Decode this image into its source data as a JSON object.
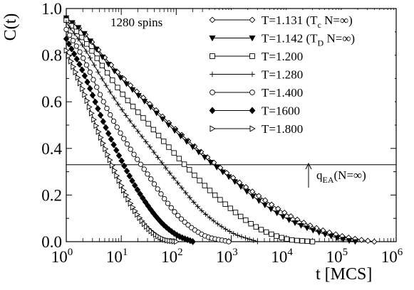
{
  "chart_data": {
    "type": "scatter",
    "title": "",
    "xlabel": "t [MCS]",
    "ylabel": "C(t)",
    "x_scale": "log",
    "xlim": [
      1,
      1000000
    ],
    "ylim": [
      0,
      1.0
    ],
    "grid": false,
    "legend_position": "top-right",
    "annotation": "1280 spins",
    "x_ticks": [
      {
        "value": 1,
        "base": "10",
        "exp": "0"
      },
      {
        "value": 10,
        "base": "10",
        "exp": "1"
      },
      {
        "value": 100,
        "base": "10",
        "exp": "2"
      },
      {
        "value": 1000,
        "base": "10",
        "exp": "3"
      },
      {
        "value": 10000,
        "base": "10",
        "exp": "4"
      },
      {
        "value": 100000,
        "base": "10",
        "exp": "5"
      },
      {
        "value": 1000000,
        "base": "10",
        "exp": "6"
      }
    ],
    "y_ticks": [
      {
        "value": 0.0,
        "label": "0.0"
      },
      {
        "value": 0.2,
        "label": "0.2"
      },
      {
        "value": 0.4,
        "label": "0.4"
      },
      {
        "value": 0.6,
        "label": "0.6"
      },
      {
        "value": 0.8,
        "label": "0.8"
      },
      {
        "value": 1.0,
        "label": "1.0"
      }
    ],
    "hline": {
      "y": 0.33,
      "label_main": "q",
      "label_sub": "EA",
      "label_rest": "(N=∞)"
    },
    "series": [
      {
        "marker": "diamond-open",
        "legend_main": "T=1.131 (T",
        "legend_sub": "c",
        "legend_rest": " N=∞)",
        "x": [
          1,
          2,
          5,
          10,
          30,
          100,
          300,
          1000,
          3000,
          10000,
          30000,
          100000,
          200000,
          400000
        ],
        "y": [
          0.96,
          0.9,
          0.79,
          0.71,
          0.6,
          0.48,
          0.38,
          0.28,
          0.2,
          0.12,
          0.065,
          0.025,
          0.01,
          0.0
        ]
      },
      {
        "marker": "triangle-down-filled",
        "legend_main": "T=1.142 (T",
        "legend_sub": "D",
        "legend_rest": " N=∞)",
        "x": [
          1,
          2,
          5,
          10,
          30,
          100,
          300,
          1000,
          3000,
          10000,
          30000,
          100000,
          180000
        ],
        "y": [
          0.96,
          0.9,
          0.78,
          0.7,
          0.59,
          0.47,
          0.37,
          0.27,
          0.18,
          0.1,
          0.05,
          0.012,
          0.0
        ]
      },
      {
        "marker": "square-open",
        "legend_main": "T=1.200",
        "legend_sub": "",
        "legend_rest": "",
        "x": [
          1,
          2,
          5,
          10,
          30,
          100,
          300,
          1000,
          3000,
          10000,
          30000
        ],
        "y": [
          0.95,
          0.87,
          0.74,
          0.64,
          0.51,
          0.37,
          0.25,
          0.14,
          0.06,
          0.012,
          0.0
        ]
      },
      {
        "marker": "plus",
        "legend_main": "T=1.280",
        "legend_sub": "",
        "legend_rest": "",
        "x": [
          1,
          2,
          5,
          10,
          30,
          100,
          300,
          1000,
          3000
        ],
        "y": [
          0.94,
          0.84,
          0.68,
          0.57,
          0.42,
          0.26,
          0.13,
          0.04,
          0.0
        ]
      },
      {
        "marker": "circle-open",
        "legend_main": "T=1.400",
        "legend_sub": "",
        "legend_rest": "",
        "x": [
          1,
          2,
          5,
          10,
          30,
          100,
          300,
          900
        ],
        "y": [
          0.91,
          0.79,
          0.59,
          0.46,
          0.29,
          0.12,
          0.03,
          0.0
        ]
      },
      {
        "marker": "diamond-filled",
        "legend_main": "T=1600",
        "legend_sub": "",
        "legend_rest": "",
        "x": [
          1,
          2,
          5,
          10,
          20,
          50,
          100,
          200
        ],
        "y": [
          0.87,
          0.73,
          0.5,
          0.35,
          0.22,
          0.09,
          0.03,
          0.0
        ]
      },
      {
        "marker": "triangle-right-open",
        "legend_main": "T=1.800",
        "legend_sub": "",
        "legend_rest": "",
        "x": [
          1,
          2,
          4,
          8,
          15,
          30,
          60,
          100
        ],
        "y": [
          0.82,
          0.65,
          0.46,
          0.29,
          0.16,
          0.06,
          0.01,
          0.0
        ]
      }
    ]
  }
}
